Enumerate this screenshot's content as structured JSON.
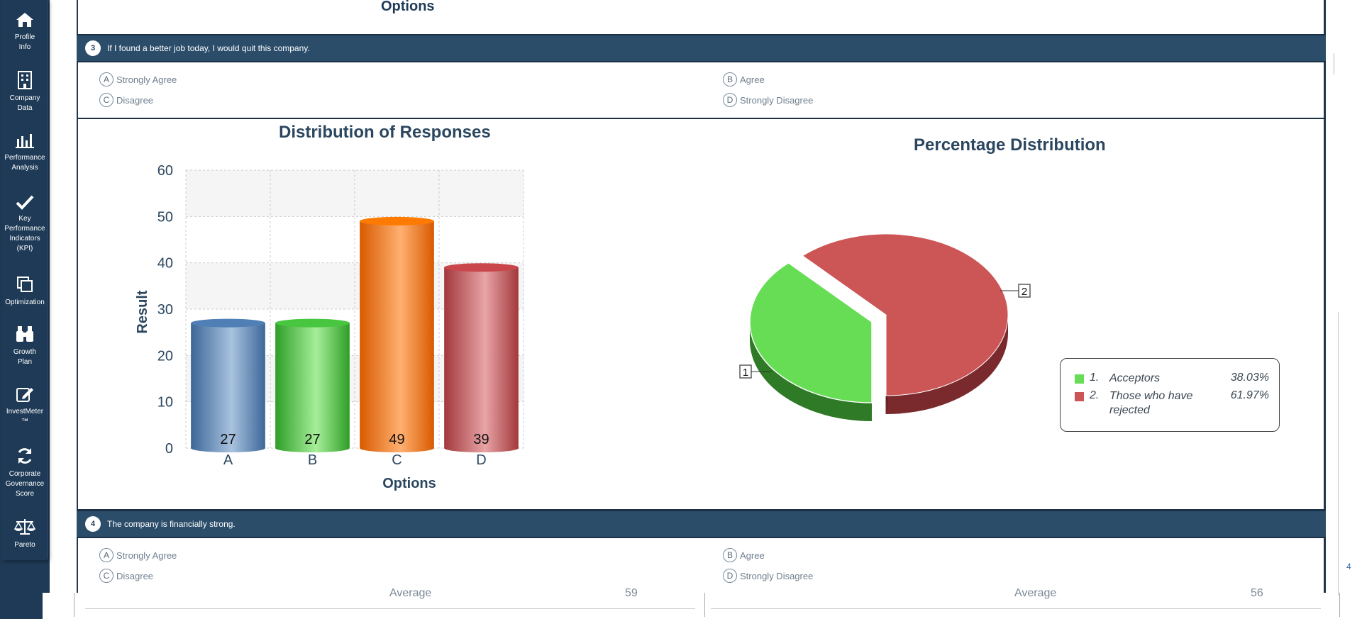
{
  "sidebar": {
    "items": [
      {
        "label": "Profile\nInfo",
        "icon": "home-icon"
      },
      {
        "label": "Company\nData",
        "icon": "building-icon"
      },
      {
        "label": "Performance\nAnalysis",
        "icon": "bar-chart-icon"
      },
      {
        "label": "Key\nPerformance\nIndicators\n(KPI)",
        "icon": "checkmark-icon"
      },
      {
        "label": "Optimization",
        "icon": "copy-icon"
      },
      {
        "label": "Growth\nPlan",
        "icon": "binoculars-icon"
      },
      {
        "label": "InvestMeter\n™",
        "icon": "edit-icon"
      },
      {
        "label": "Corporate\nGovernance\nScore",
        "icon": "refresh-icon"
      },
      {
        "label": "Pareto",
        "icon": "scale-icon"
      }
    ]
  },
  "top_axis_label": "Options",
  "question3": {
    "number": "3",
    "text": "If I found a better job today, I would quit this company.",
    "options": [
      {
        "letter": "A",
        "label": "Strongly Agree"
      },
      {
        "letter": "B",
        "label": "Agree"
      },
      {
        "letter": "C",
        "label": "Disagree"
      },
      {
        "letter": "D",
        "label": "Strongly Disagree"
      }
    ]
  },
  "chart_data": [
    {
      "type": "bar",
      "title": "Distribution of Responses",
      "xlabel": "Options",
      "ylabel": "Result",
      "categories": [
        "A",
        "B",
        "C",
        "D"
      ],
      "values": [
        27,
        27,
        49,
        39
      ],
      "colors": [
        "#4f7fb5",
        "#49c63f",
        "#ff7a00",
        "#c9474b"
      ],
      "ylim": [
        0,
        60
      ],
      "yticks": [
        "0",
        "10",
        "20",
        "30",
        "40",
        "50",
        "60"
      ],
      "grid": true
    },
    {
      "type": "pie",
      "title": "Percentage Distribution",
      "slices": [
        {
          "num": "1.",
          "label": "Acceptors",
          "value": 38.03,
          "pct": "38.03%",
          "color": "#66dd55",
          "callout": "1"
        },
        {
          "num": "2.",
          "label": "Those who have rejected",
          "value": 61.97,
          "pct": "61.97%",
          "color": "#cc5555",
          "callout": "2"
        }
      ],
      "legend": "right"
    }
  ],
  "question4": {
    "number": "4",
    "text": "The company is financially strong.",
    "options": [
      {
        "letter": "A",
        "label": "Strongly Agree"
      },
      {
        "letter": "B",
        "label": "Agree"
      },
      {
        "letter": "C",
        "label": "Disagree"
      },
      {
        "letter": "D",
        "label": "Strongly Disagree"
      }
    ]
  },
  "bottom": {
    "left_label": "Average",
    "left_value": "59",
    "right_label": "Average",
    "right_value": "56",
    "page_num": "4"
  }
}
